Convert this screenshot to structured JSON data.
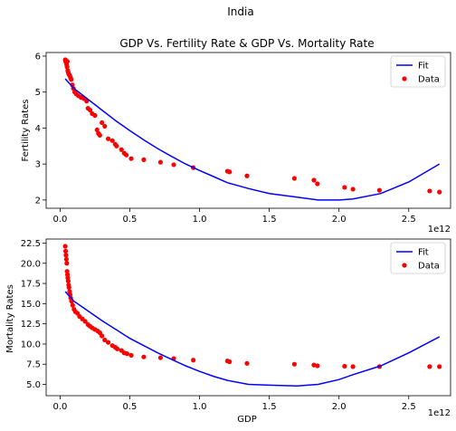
{
  "figure": {
    "suptitle": "India",
    "background": "#ffffff"
  },
  "colors": {
    "fit": "#0000ff",
    "data": "#ff0000",
    "axis": "#000000"
  },
  "chart_data": [
    {
      "type": "scatter",
      "title": "GDP Vs. Fertility Rate & GDP Vs. Mortality Rate",
      "xlabel": "",
      "ylabel": "Fertility Rates",
      "x_offset_label": "1e12",
      "xlim": [
        -0.1,
        2.8
      ],
      "ylim": [
        1.77,
        6.1
      ],
      "xticks": [
        0.0,
        0.5,
        1.0,
        1.5,
        2.0,
        2.5
      ],
      "xtick_labels": [
        "0.0",
        "0.5",
        "1.0",
        "1.5",
        "2.0",
        "2.5"
      ],
      "yticks": [
        2,
        3,
        4,
        5,
        6
      ],
      "ytick_labels": [
        "2",
        "3",
        "4",
        "5",
        "6"
      ],
      "legend_position": "top-right",
      "series": [
        {
          "name": "Data",
          "kind": "scatter",
          "x": [
            0.037,
            0.04,
            0.043,
            0.045,
            0.048,
            0.05,
            0.052,
            0.055,
            0.058,
            0.062,
            0.066,
            0.07,
            0.075,
            0.08,
            0.088,
            0.095,
            0.105,
            0.115,
            0.13,
            0.15,
            0.17,
            0.19,
            0.2,
            0.215,
            0.23,
            0.25,
            0.265,
            0.275,
            0.285,
            0.3,
            0.32,
            0.345,
            0.375,
            0.395,
            0.405,
            0.44,
            0.46,
            0.475,
            0.51,
            0.6,
            0.72,
            0.815,
            0.955,
            1.2,
            1.215,
            1.34,
            1.68,
            1.82,
            1.845,
            2.04,
            2.1,
            2.29,
            2.65,
            2.72
          ],
          "y": [
            5.9,
            5.85,
            5.88,
            5.8,
            5.75,
            5.7,
            5.85,
            5.6,
            5.55,
            5.5,
            5.48,
            5.45,
            5.4,
            5.35,
            5.2,
            5.1,
            5.0,
            4.95,
            4.9,
            4.85,
            4.82,
            4.75,
            4.55,
            4.5,
            4.4,
            4.35,
            3.95,
            3.85,
            3.8,
            4.15,
            4.05,
            3.7,
            3.65,
            3.55,
            3.5,
            3.4,
            3.3,
            3.25,
            3.15,
            3.12,
            3.05,
            2.98,
            2.9,
            2.8,
            2.78,
            2.67,
            2.6,
            2.55,
            2.45,
            2.35,
            2.3,
            2.27,
            2.25,
            2.22
          ]
        },
        {
          "name": "Fit",
          "kind": "line",
          "x": [
            0.037,
            0.1,
            0.2,
            0.3,
            0.4,
            0.5,
            0.6,
            0.7,
            0.8,
            0.9,
            1.0,
            1.1,
            1.2,
            1.35,
            1.5,
            1.7,
            1.85,
            2.0,
            2.1,
            2.3,
            2.5,
            2.72
          ],
          "y": [
            5.37,
            5.1,
            4.8,
            4.5,
            4.2,
            3.93,
            3.67,
            3.43,
            3.21,
            3.0,
            2.82,
            2.65,
            2.48,
            2.32,
            2.18,
            2.08,
            2.0,
            2.0,
            2.03,
            2.18,
            2.5,
            3.0
          ]
        }
      ]
    },
    {
      "type": "scatter",
      "title": "",
      "xlabel": "GDP",
      "ylabel": "Mortality Rates",
      "x_offset_label": "1e12",
      "xlim": [
        -0.1,
        2.8
      ],
      "ylim": [
        3.6,
        23.0
      ],
      "xticks": [
        0.0,
        0.5,
        1.0,
        1.5,
        2.0,
        2.5
      ],
      "xtick_labels": [
        "0.0",
        "0.5",
        "1.0",
        "1.5",
        "2.0",
        "2.5"
      ],
      "yticks": [
        5.0,
        7.5,
        10.0,
        12.5,
        15.0,
        17.5,
        20.0,
        22.5
      ],
      "ytick_labels": [
        "5.0",
        "7.5",
        "10.0",
        "12.5",
        "15.0",
        "17.5",
        "20.0",
        "22.5"
      ],
      "legend_position": "top-right",
      "series": [
        {
          "name": "Data",
          "kind": "scatter",
          "x": [
            0.037,
            0.04,
            0.042,
            0.045,
            0.048,
            0.05,
            0.053,
            0.055,
            0.058,
            0.061,
            0.064,
            0.068,
            0.072,
            0.076,
            0.082,
            0.09,
            0.1,
            0.11,
            0.125,
            0.14,
            0.16,
            0.18,
            0.2,
            0.215,
            0.23,
            0.25,
            0.27,
            0.285,
            0.3,
            0.32,
            0.345,
            0.375,
            0.395,
            0.41,
            0.44,
            0.46,
            0.48,
            0.51,
            0.6,
            0.72,
            0.815,
            0.955,
            1.2,
            1.215,
            1.34,
            1.68,
            1.82,
            1.845,
            2.04,
            2.1,
            2.29,
            2.65,
            2.72
          ],
          "y": [
            22.1,
            21.5,
            21.0,
            20.5,
            20.0,
            19.0,
            18.6,
            18.2,
            17.8,
            17.3,
            17.0,
            16.5,
            16.1,
            15.7,
            15.3,
            14.8,
            14.3,
            14.0,
            13.8,
            13.4,
            13.1,
            12.8,
            12.4,
            12.2,
            12.0,
            11.8,
            11.6,
            11.4,
            11.0,
            10.5,
            10.2,
            9.8,
            9.6,
            9.4,
            9.2,
            8.9,
            8.8,
            8.6,
            8.4,
            8.3,
            8.2,
            8.0,
            7.9,
            7.8,
            7.6,
            7.5,
            7.4,
            7.3,
            7.25,
            7.2,
            7.2,
            7.2,
            7.2
          ]
        },
        {
          "name": "Fit",
          "kind": "line",
          "x": [
            0.037,
            0.1,
            0.2,
            0.3,
            0.4,
            0.5,
            0.6,
            0.7,
            0.8,
            0.9,
            1.0,
            1.1,
            1.2,
            1.35,
            1.5,
            1.7,
            1.85,
            2.0,
            2.1,
            2.3,
            2.5,
            2.72
          ],
          "y": [
            16.5,
            15.3,
            14.1,
            12.9,
            11.8,
            10.7,
            9.8,
            8.9,
            8.1,
            7.3,
            6.6,
            6.0,
            5.5,
            5.0,
            4.9,
            4.8,
            5.0,
            5.6,
            6.2,
            7.3,
            8.9,
            10.9
          ]
        }
      ]
    }
  ]
}
